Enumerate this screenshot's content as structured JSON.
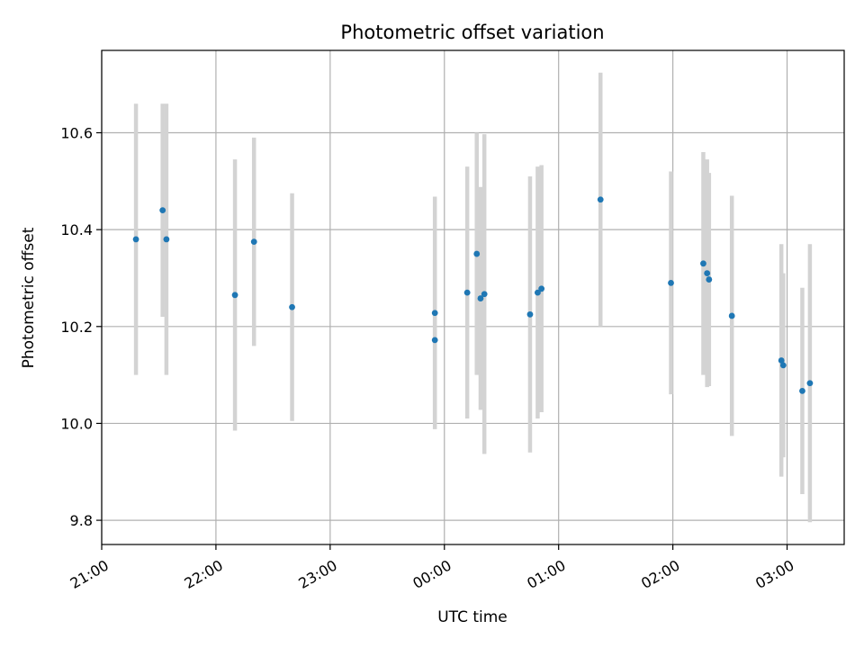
{
  "chart_data": {
    "type": "scatter",
    "title": "Photometric offset variation",
    "xlabel": "UTC time",
    "ylabel": "Photometric offset",
    "x_ticks": [
      "21:00",
      "22:00",
      "23:00",
      "00:00",
      "01:00",
      "02:00",
      "03:00"
    ],
    "y_ticks": [
      "9.8",
      "10.0",
      "10.2",
      "10.4",
      "10.6"
    ],
    "xlim_hours_from_2100": [
      0,
      6.5
    ],
    "ylim": [
      9.75,
      10.77
    ],
    "grid": true,
    "colors": {
      "point": "#1f77b4",
      "errorbar": "#d3d3d3",
      "grid": "#b0b0b0"
    },
    "series": [
      {
        "points": [
          {
            "t": "21:18",
            "y": 10.38,
            "err": 0.28
          },
          {
            "t": "21:32",
            "y": 10.44,
            "err": 0.22
          },
          {
            "t": "21:34",
            "y": 10.38,
            "err": 0.28
          },
          {
            "t": "22:10",
            "y": 10.265,
            "err": 0.28
          },
          {
            "t": "22:20",
            "y": 10.375,
            "err": 0.215
          },
          {
            "t": "22:40",
            "y": 10.24,
            "err": 0.235
          },
          {
            "t": "23:55",
            "y": 10.228,
            "err": 0.24
          },
          {
            "t": "23:55",
            "y": 10.172,
            "err": 0.165
          },
          {
            "t": "00:12",
            "y": 10.27,
            "err": 0.26
          },
          {
            "t": "00:17",
            "y": 10.35,
            "err": 0.25
          },
          {
            "t": "00:19",
            "y": 10.258,
            "err": 0.23
          },
          {
            "t": "00:21",
            "y": 10.267,
            "err": 0.33
          },
          {
            "t": "00:45",
            "y": 10.225,
            "err": 0.285
          },
          {
            "t": "00:49",
            "y": 10.27,
            "err": 0.26
          },
          {
            "t": "00:51",
            "y": 10.278,
            "err": 0.255
          },
          {
            "t": "01:22",
            "y": 10.462,
            "err": 0.262
          },
          {
            "t": "01:59",
            "y": 10.29,
            "err": 0.23
          },
          {
            "t": "02:16",
            "y": 10.33,
            "err": 0.23
          },
          {
            "t": "02:18",
            "y": 10.31,
            "err": 0.235
          },
          {
            "t": "02:19",
            "y": 10.297,
            "err": 0.22
          },
          {
            "t": "02:31",
            "y": 10.222,
            "err": 0.248
          },
          {
            "t": "02:57",
            "y": 10.13,
            "err": 0.24
          },
          {
            "t": "02:58",
            "y": 10.12,
            "err": 0.19
          },
          {
            "t": "03:08",
            "y": 10.067,
            "err": 0.213
          },
          {
            "t": "03:12",
            "y": 10.083,
            "err": 0.287
          }
        ]
      }
    ]
  }
}
